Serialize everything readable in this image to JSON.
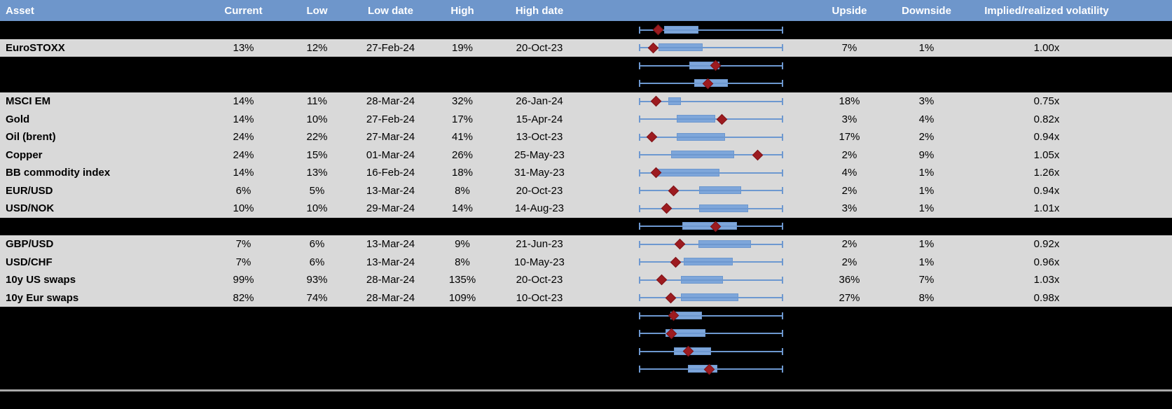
{
  "header": {
    "asset": "Asset",
    "current": "Current",
    "low": "Low",
    "low_date": "Low date",
    "high": "High",
    "high_date": "High date",
    "plot": "",
    "upside": "Upside",
    "downside": "Downside",
    "iv_rv": "Implied/realized volatility"
  },
  "colors": {
    "header_bg": "#6e96cb",
    "header_text": "#ffffff",
    "data_row_bg": "#d9d9d9",
    "hidden_row_bg": "#000000",
    "whisker_blue": "#6d98d0",
    "box_blue": "#7ea6da",
    "marker_red": "#9d1b20",
    "separator_gray": "#a9a9a9"
  },
  "rows": [
    {
      "kind": "hidden",
      "asset": "",
      "current": "",
      "low": "",
      "low_date": "",
      "high": "",
      "high_date": "",
      "upside": "",
      "downside": "",
      "iv_rv": "",
      "plot": {
        "box_start": 0.17,
        "box_end": 0.41,
        "marker": 0.13
      }
    },
    {
      "kind": "data",
      "asset": "EuroSTOXX",
      "current": "13%",
      "low": "12%",
      "low_date": "27-Feb-24",
      "high": "19%",
      "high_date": "20-Oct-23",
      "upside": "7%",
      "downside": "1%",
      "iv_rv": "1.00x",
      "plot": {
        "box_start": 0.13,
        "box_end": 0.44,
        "marker": 0.095
      }
    },
    {
      "kind": "hidden",
      "asset": "",
      "current": "",
      "low": "",
      "low_date": "",
      "high": "",
      "high_date": "",
      "upside": "",
      "downside": "",
      "iv_rv": "",
      "plot": {
        "box_start": 0.35,
        "box_end": 0.56,
        "marker": 0.53
      }
    },
    {
      "kind": "hidden",
      "asset": "",
      "current": "",
      "low": "",
      "low_date": "",
      "high": "",
      "high_date": "",
      "upside": "",
      "downside": "",
      "iv_rv": "",
      "plot": {
        "box_start": 0.38,
        "box_end": 0.62,
        "marker": 0.48
      }
    },
    {
      "kind": "data",
      "asset": "MSCI EM",
      "current": "14%",
      "low": "11%",
      "low_date": "28-Mar-24",
      "high": "32%",
      "high_date": "26-Jan-24",
      "upside": "18%",
      "downside": "3%",
      "iv_rv": "0.75x",
      "plot": {
        "box_start": 0.2,
        "box_end": 0.29,
        "marker": 0.115
      }
    },
    {
      "kind": "data",
      "asset": "Gold",
      "current": "14%",
      "low": "10%",
      "low_date": "27-Feb-24",
      "high": "17%",
      "high_date": "15-Apr-24",
      "upside": "3%",
      "downside": "4%",
      "iv_rv": "0.82x",
      "plot": {
        "box_start": 0.26,
        "box_end": 0.53,
        "marker": 0.575
      }
    },
    {
      "kind": "data",
      "asset": "Oil (brent)",
      "current": "24%",
      "low": "22%",
      "low_date": "27-Mar-24",
      "high": "41%",
      "high_date": "13-Oct-23",
      "upside": "17%",
      "downside": "2%",
      "iv_rv": "0.94x",
      "plot": {
        "box_start": 0.26,
        "box_end": 0.6,
        "marker": 0.085
      }
    },
    {
      "kind": "data",
      "asset": "Copper",
      "current": "24%",
      "low": "15%",
      "low_date": "01-Mar-24",
      "high": "26%",
      "high_date": "25-May-23",
      "upside": "2%",
      "downside": "9%",
      "iv_rv": "1.05x",
      "plot": {
        "box_start": 0.22,
        "box_end": 0.66,
        "marker": 0.825
      }
    },
    {
      "kind": "data",
      "asset": "BB commodity index",
      "current": "14%",
      "low": "13%",
      "low_date": "16-Feb-24",
      "high": "18%",
      "high_date": "31-May-23",
      "upside": "4%",
      "downside": "1%",
      "iv_rv": "1.26x",
      "plot": {
        "box_start": 0.115,
        "box_end": 0.56,
        "marker": 0.115
      }
    },
    {
      "kind": "data",
      "asset": "EUR/USD",
      "current": "6%",
      "low": "5%",
      "low_date": "13-Mar-24",
      "high": "8%",
      "high_date": "20-Oct-23",
      "upside": "2%",
      "downside": "1%",
      "iv_rv": "0.94x",
      "plot": {
        "box_start": 0.415,
        "box_end": 0.71,
        "marker": 0.24
      }
    },
    {
      "kind": "data",
      "asset": "USD/NOK",
      "current": "10%",
      "low": "10%",
      "low_date": "29-Mar-24",
      "high": "14%",
      "high_date": "14-Aug-23",
      "upside": "3%",
      "downside": "1%",
      "iv_rv": "1.01x",
      "plot": {
        "box_start": 0.415,
        "box_end": 0.76,
        "marker": 0.19
      }
    },
    {
      "kind": "hidden",
      "asset": "",
      "current": "",
      "low": "",
      "low_date": "",
      "high": "",
      "high_date": "",
      "upside": "",
      "downside": "",
      "iv_rv": "",
      "plot": {
        "box_start": 0.3,
        "box_end": 0.68,
        "marker": 0.53
      }
    },
    {
      "kind": "data",
      "asset": "GBP/USD",
      "current": "7%",
      "low": "6%",
      "low_date": "13-Mar-24",
      "high": "9%",
      "high_date": "21-Jun-23",
      "upside": "2%",
      "downside": "1%",
      "iv_rv": "0.92x",
      "plot": {
        "box_start": 0.41,
        "box_end": 0.78,
        "marker": 0.28
      }
    },
    {
      "kind": "data",
      "asset": "USD/CHF",
      "current": "7%",
      "low": "6%",
      "low_date": "13-Mar-24",
      "high": "8%",
      "high_date": "10-May-23",
      "upside": "2%",
      "downside": "1%",
      "iv_rv": "0.96x",
      "plot": {
        "box_start": 0.31,
        "box_end": 0.65,
        "marker": 0.25
      }
    },
    {
      "kind": "data",
      "asset": "10y US swaps",
      "current": "99%",
      "low": "93%",
      "low_date": "28-Mar-24",
      "high": "135%",
      "high_date": "20-Oct-23",
      "upside": "36%",
      "downside": "7%",
      "iv_rv": "1.03x",
      "plot": {
        "box_start": 0.29,
        "box_end": 0.585,
        "marker": 0.155
      }
    },
    {
      "kind": "data",
      "asset": "10y Eur swaps",
      "current": "82%",
      "low": "74%",
      "low_date": "28-Mar-24",
      "high": "109%",
      "high_date": "10-Oct-23",
      "upside": "27%",
      "downside": "8%",
      "iv_rv": "0.98x",
      "plot": {
        "box_start": 0.29,
        "box_end": 0.69,
        "marker": 0.22
      }
    },
    {
      "kind": "hidden",
      "asset": "",
      "current": "",
      "low": "",
      "low_date": "",
      "high": "",
      "high_date": "",
      "upside": "",
      "downside": "",
      "iv_rv": "",
      "plot": {
        "box_start": 0.215,
        "box_end": 0.435,
        "marker": 0.24
      }
    },
    {
      "kind": "hidden",
      "asset": "",
      "current": "",
      "low": "",
      "low_date": "",
      "high": "",
      "high_date": "",
      "upside": "",
      "downside": "",
      "iv_rv": "",
      "plot": {
        "box_start": 0.18,
        "box_end": 0.46,
        "marker": 0.225
      }
    },
    {
      "kind": "hidden",
      "asset": "",
      "current": "",
      "low": "",
      "low_date": "",
      "high": "",
      "high_date": "",
      "upside": "",
      "downside": "",
      "iv_rv": "",
      "plot": {
        "box_start": 0.24,
        "box_end": 0.5,
        "marker": 0.34
      }
    },
    {
      "kind": "hidden",
      "asset": "",
      "current": "",
      "low": "",
      "low_date": "",
      "high": "",
      "high_date": "",
      "upside": "",
      "downside": "",
      "iv_rv": "",
      "plot": {
        "box_start": 0.34,
        "box_end": 0.545,
        "marker": 0.49
      }
    }
  ]
}
